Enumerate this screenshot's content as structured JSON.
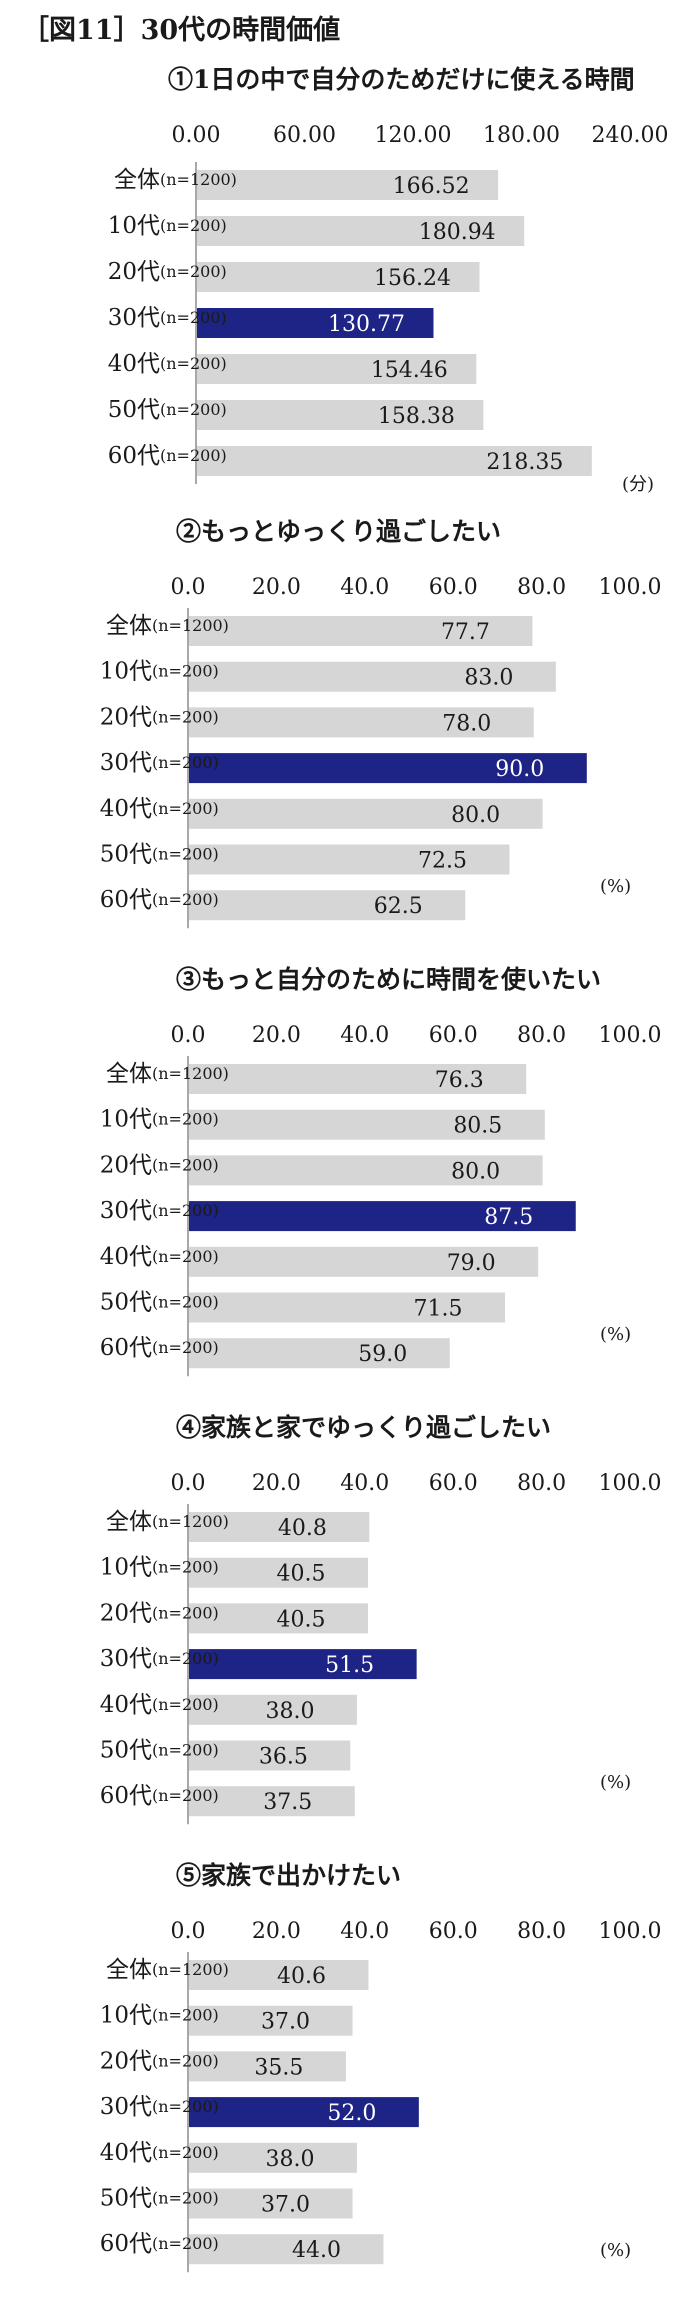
{
  "figure": {
    "title": "［図11］30代の時間価値"
  },
  "colors": {
    "bar": "#d6d6d6",
    "highlight": "#1e2386",
    "axis": "#8c8c8c"
  },
  "chart_data": [
    {
      "type": "bar",
      "orientation": "horizontal",
      "title": "①1日の中で自分のためだけに使える時間",
      "unit": "(分)",
      "xlim": [
        0,
        240
      ],
      "ticks": [
        "0.00",
        "60.00",
        "120.00",
        "180.00",
        "240.00"
      ],
      "categories": [
        {
          "name": "全体",
          "n": "(n=1200)"
        },
        {
          "name": "10代",
          "n": "(n=200)"
        },
        {
          "name": "20代",
          "n": "(n=200)"
        },
        {
          "name": "30代",
          "n": "(n=200)"
        },
        {
          "name": "40代",
          "n": "(n=200)"
        },
        {
          "name": "50代",
          "n": "(n=200)"
        },
        {
          "name": "60代",
          "n": "(n=200)"
        }
      ],
      "values": [
        166.52,
        180.94,
        156.24,
        130.77,
        154.46,
        158.38,
        218.35
      ],
      "value_labels": [
        "166.52",
        "180.94",
        "156.24",
        "130.77",
        "154.46",
        "158.38",
        "218.35"
      ],
      "highlight_index": 3
    },
    {
      "type": "bar",
      "orientation": "horizontal",
      "title": "②もっとゆっくり過ごしたい",
      "unit": "(%)",
      "xlim": [
        0,
        100
      ],
      "ticks": [
        "0.0",
        "20.0",
        "40.0",
        "60.0",
        "80.0",
        "100.0"
      ],
      "categories": [
        {
          "name": "全体",
          "n": "(n=1200)"
        },
        {
          "name": "10代",
          "n": "(n=200)"
        },
        {
          "name": "20代",
          "n": "(n=200)"
        },
        {
          "name": "30代",
          "n": "(n=200)"
        },
        {
          "name": "40代",
          "n": "(n=200)"
        },
        {
          "name": "50代",
          "n": "(n=200)"
        },
        {
          "name": "60代",
          "n": "(n=200)"
        }
      ],
      "values": [
        77.7,
        83.0,
        78.0,
        90.0,
        80.0,
        72.5,
        62.5
      ],
      "value_labels": [
        "77.7",
        "83.0",
        "78.0",
        "90.0",
        "80.0",
        "72.5",
        "62.5"
      ],
      "highlight_index": 3
    },
    {
      "type": "bar",
      "orientation": "horizontal",
      "title": "③もっと自分のために時間を使いたい",
      "unit": "(%)",
      "xlim": [
        0,
        100
      ],
      "ticks": [
        "0.0",
        "20.0",
        "40.0",
        "60.0",
        "80.0",
        "100.0"
      ],
      "categories": [
        {
          "name": "全体",
          "n": "(n=1200)"
        },
        {
          "name": "10代",
          "n": "(n=200)"
        },
        {
          "name": "20代",
          "n": "(n=200)"
        },
        {
          "name": "30代",
          "n": "(n=200)"
        },
        {
          "name": "40代",
          "n": "(n=200)"
        },
        {
          "name": "50代",
          "n": "(n=200)"
        },
        {
          "name": "60代",
          "n": "(n=200)"
        }
      ],
      "values": [
        76.3,
        80.5,
        80.0,
        87.5,
        79.0,
        71.5,
        59.0
      ],
      "value_labels": [
        "76.3",
        "80.5",
        "80.0",
        "87.5",
        "79.0",
        "71.5",
        "59.0"
      ],
      "highlight_index": 3
    },
    {
      "type": "bar",
      "orientation": "horizontal",
      "title": "④家族と家でゆっくり過ごしたい",
      "unit": "(%)",
      "xlim": [
        0,
        100
      ],
      "ticks": [
        "0.0",
        "20.0",
        "40.0",
        "60.0",
        "80.0",
        "100.0"
      ],
      "categories": [
        {
          "name": "全体",
          "n": "(n=1200)"
        },
        {
          "name": "10代",
          "n": "(n=200)"
        },
        {
          "name": "20代",
          "n": "(n=200)"
        },
        {
          "name": "30代",
          "n": "(n=200)"
        },
        {
          "name": "40代",
          "n": "(n=200)"
        },
        {
          "name": "50代",
          "n": "(n=200)"
        },
        {
          "name": "60代",
          "n": "(n=200)"
        }
      ],
      "values": [
        40.8,
        40.5,
        40.5,
        51.5,
        38.0,
        36.5,
        37.5
      ],
      "value_labels": [
        "40.8",
        "40.5",
        "40.5",
        "51.5",
        "38.0",
        "36.5",
        "37.5"
      ],
      "highlight_index": 3
    },
    {
      "type": "bar",
      "orientation": "horizontal",
      "title": "⑤家族で出かけたい",
      "unit": "(%)",
      "xlim": [
        0,
        100
      ],
      "ticks": [
        "0.0",
        "20.0",
        "40.0",
        "60.0",
        "80.0",
        "100.0"
      ],
      "categories": [
        {
          "name": "全体",
          "n": "(n=1200)"
        },
        {
          "name": "10代",
          "n": "(n=200)"
        },
        {
          "name": "20代",
          "n": "(n=200)"
        },
        {
          "name": "30代",
          "n": "(n=200)"
        },
        {
          "name": "40代",
          "n": "(n=200)"
        },
        {
          "name": "50代",
          "n": "(n=200)"
        },
        {
          "name": "60代",
          "n": "(n=200)"
        }
      ],
      "values": [
        40.6,
        37.0,
        35.5,
        52.0,
        38.0,
        37.0,
        44.0
      ],
      "value_labels": [
        "40.6",
        "37.0",
        "35.5",
        "52.0",
        "38.0",
        "37.0",
        "44.0"
      ],
      "highlight_index": 3
    }
  ]
}
